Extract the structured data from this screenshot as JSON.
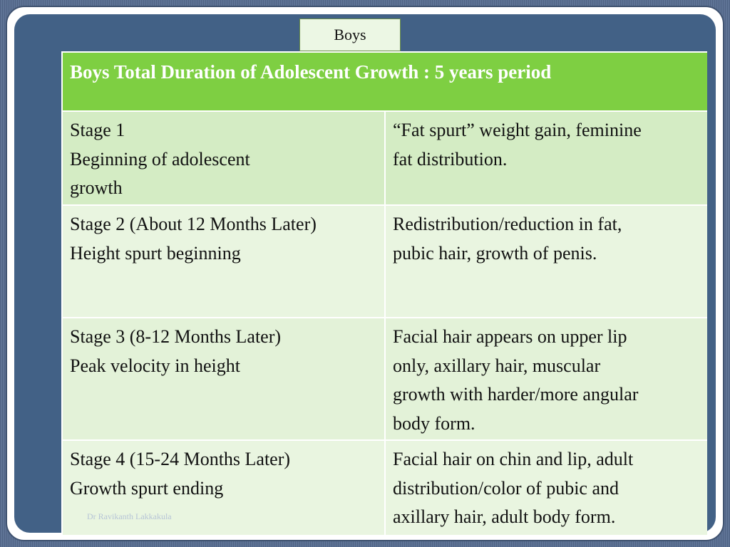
{
  "tab": {
    "label": "Boys"
  },
  "table": {
    "header": "Boys Total Duration of Adolescent Growth :  5 years period",
    "rows": [
      {
        "stage": [
          "Stage 1",
          "Beginning of adolescent",
          "growth"
        ],
        "description": [
          "“Fat spurt” weight gain, feminine",
          "fat distribution."
        ]
      },
      {
        "stage": [
          "Stage 2 (About 12 Months Later)",
          "Height spurt beginning"
        ],
        "description": [
          "Redistribution/reduction in fat,",
          "pubic hair, growth of penis."
        ]
      },
      {
        "stage": [
          "Stage 3 (8-12 Months Later)",
          "Peak velocity in height"
        ],
        "description": [
          "Facial hair appears on upper lip",
          "only, axillary hair, muscular",
          "growth with harder/more angular",
          "body form."
        ]
      },
      {
        "stage": [
          "Stage 4 (15-24 Months Later)",
          "Growth spurt ending"
        ],
        "description": [
          "Facial hair on chin and lip, adult",
          "distribution/color of pubic and",
          "axillary hair, adult body form."
        ]
      }
    ]
  },
  "watermark": "Dr Ravikanth Lakkakula",
  "colors": {
    "header_green": "#7ecf42",
    "cell_light_green": "#d4ecc4",
    "cell_pale_green": "#e9f5e0",
    "frame_blue": "#426186"
  }
}
